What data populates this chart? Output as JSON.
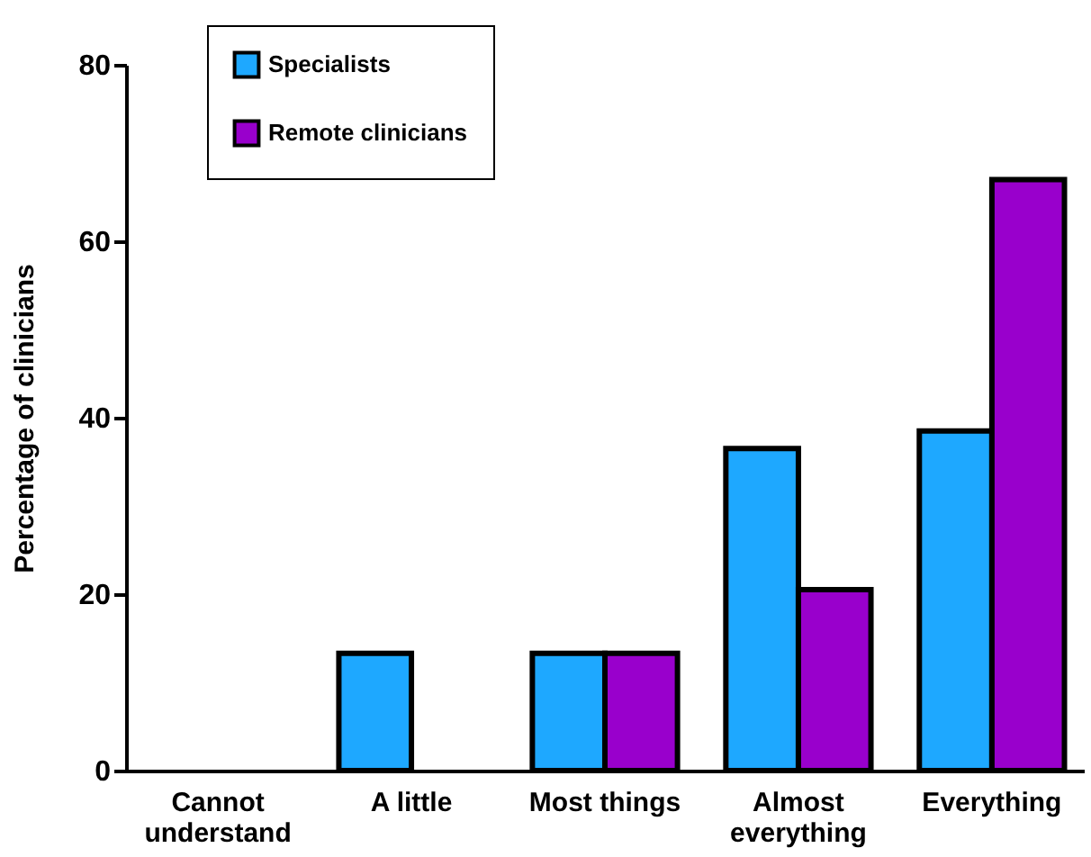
{
  "chart_data": {
    "type": "bar",
    "ylabel": "Percentage of clinicians",
    "categories": [
      "Cannot\nunderstand",
      "A little",
      "Most things",
      "Almost\neverything",
      "Everything"
    ],
    "series": [
      {
        "name": "Specialists",
        "color": "#1ea8ff",
        "values": [
          null,
          13.3,
          13.3,
          36.5,
          38.5
        ]
      },
      {
        "name": "Remote clinicians",
        "color": "#9900cc",
        "values": [
          null,
          null,
          13.3,
          20.5,
          67
        ]
      }
    ],
    "ylim": [
      0,
      80
    ],
    "yticks": [
      0,
      20,
      40,
      60,
      80
    ],
    "grid": false,
    "legend": "top left"
  }
}
